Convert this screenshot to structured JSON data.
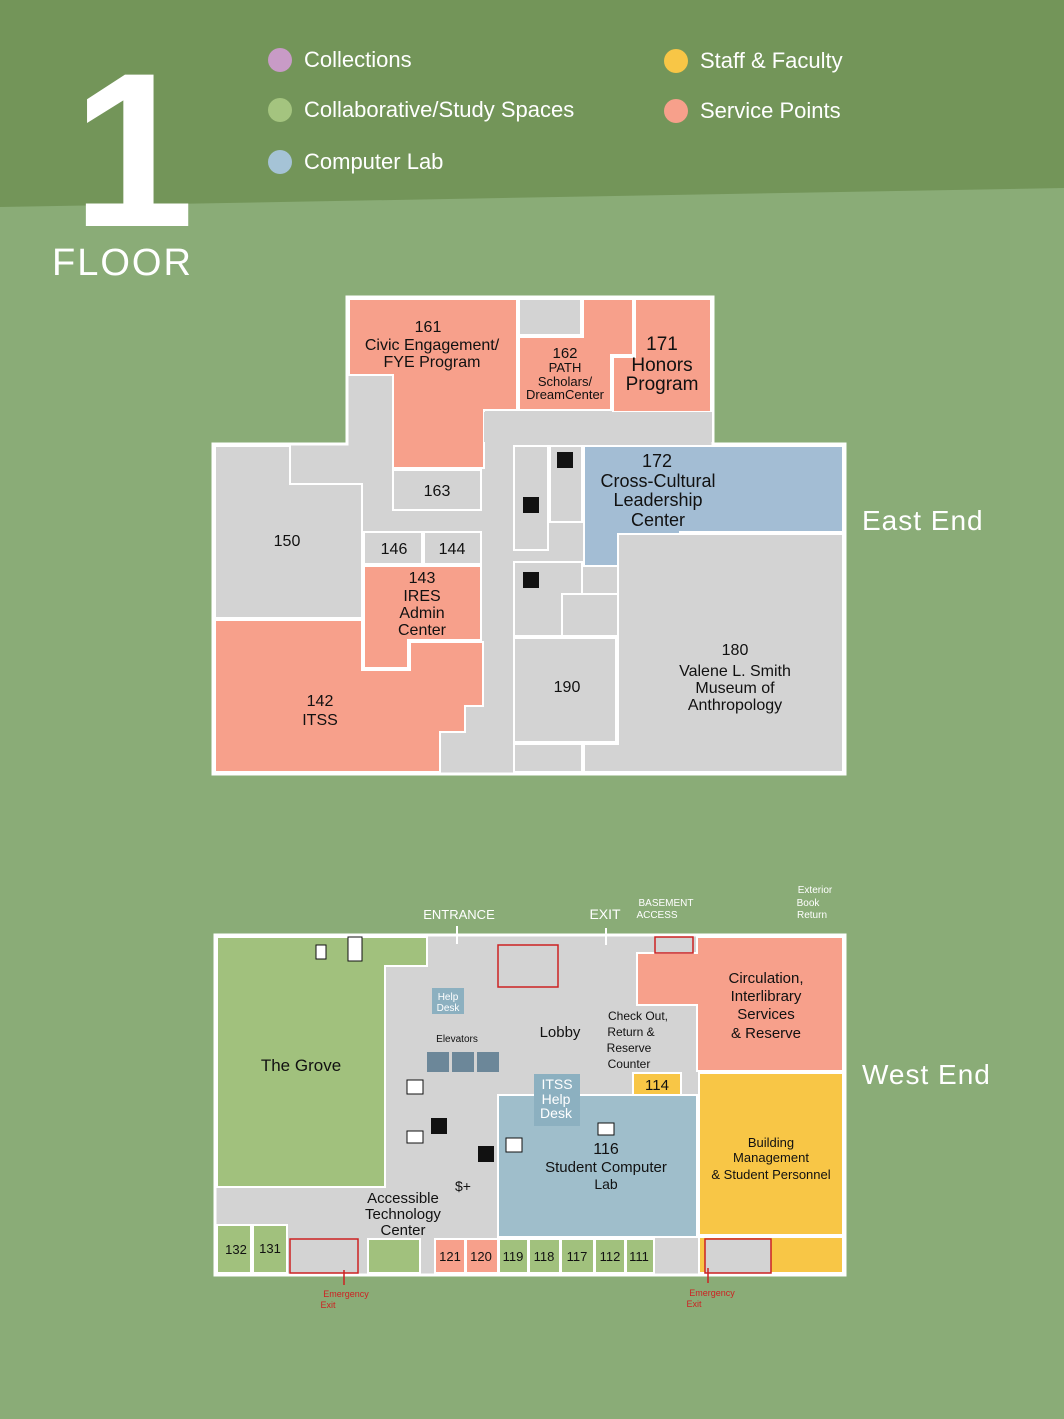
{
  "floor": {
    "number": "1",
    "word": "FLOOR"
  },
  "legend": [
    {
      "label": "Collections",
      "color": "#c89bc6"
    },
    {
      "label": "Collaborative/Study Spaces",
      "color": "#a4c47f"
    },
    {
      "label": "Computer Lab",
      "color": "#a5c3d6"
    },
    {
      "label": "Staff & Faculty",
      "color": "#f8c646"
    },
    {
      "label": "Service Points",
      "color": "#f7a08b"
    }
  ],
  "colors": {
    "background": "#8aac77",
    "header": "#739559",
    "room_gray": "#d3d3d3",
    "service": "#f7a08b",
    "study": "#a1c17d",
    "lab": "#a3bdd4",
    "lab_west": "#9fbecb",
    "staff": "#f8c646",
    "helpdesk": "#8cb0c0",
    "stairs": "#cc2222"
  },
  "east_end": {
    "label": "East End",
    "rooms": {
      "r161": [
        "161",
        "Civic Engagement/",
        "FYE Program"
      ],
      "r162": [
        "162",
        "PATH",
        "Scholars/",
        "DreamCenter"
      ],
      "r171": [
        "171",
        "Honors",
        "Program"
      ],
      "r163": "163",
      "r150": "150",
      "r146": "146",
      "r144": "144",
      "r143": [
        "143",
        "IRES",
        "Admin",
        "Center"
      ],
      "r142": [
        "142",
        "ITSS"
      ],
      "r172": [
        "172",
        "Cross-Cultural",
        "Leadership",
        "Center"
      ],
      "r190": "190",
      "r180": [
        "180",
        "Valene L. Smith",
        "Museum of",
        "Anthropology"
      ]
    }
  },
  "west_end": {
    "label": "West End",
    "labels": {
      "entrance": "ENTRANCE",
      "exit": "EXIT",
      "basement": [
        "BASEMENT",
        "ACCESS"
      ],
      "book_return": [
        "Exterior",
        "Book",
        "Return"
      ],
      "grove": "The Grove",
      "help_desk": [
        "Help",
        "Desk"
      ],
      "elevators": "Elevators",
      "lobby": "Lobby",
      "checkout": [
        "Check Out,",
        "Return &",
        "Reserve",
        "Counter"
      ],
      "circulation": [
        "Circulation,",
        "Interlibrary",
        "Services",
        "& Reserve"
      ],
      "itss_help": [
        "ITSS",
        "Help",
        "Desk"
      ],
      "r114": "114",
      "r116": [
        "116",
        "Student Computer",
        "Lab"
      ],
      "building_mgmt": [
        "Building",
        "Management",
        "& Student Personnel"
      ],
      "accessible": [
        "Accessible",
        "Technology",
        "Center"
      ],
      "print_icon": "$+",
      "emergency": [
        "Emergency",
        "Exit"
      ],
      "small_rooms": [
        "132",
        "131",
        "121",
        "120",
        "119",
        "118",
        "117",
        "112",
        "111"
      ]
    }
  }
}
